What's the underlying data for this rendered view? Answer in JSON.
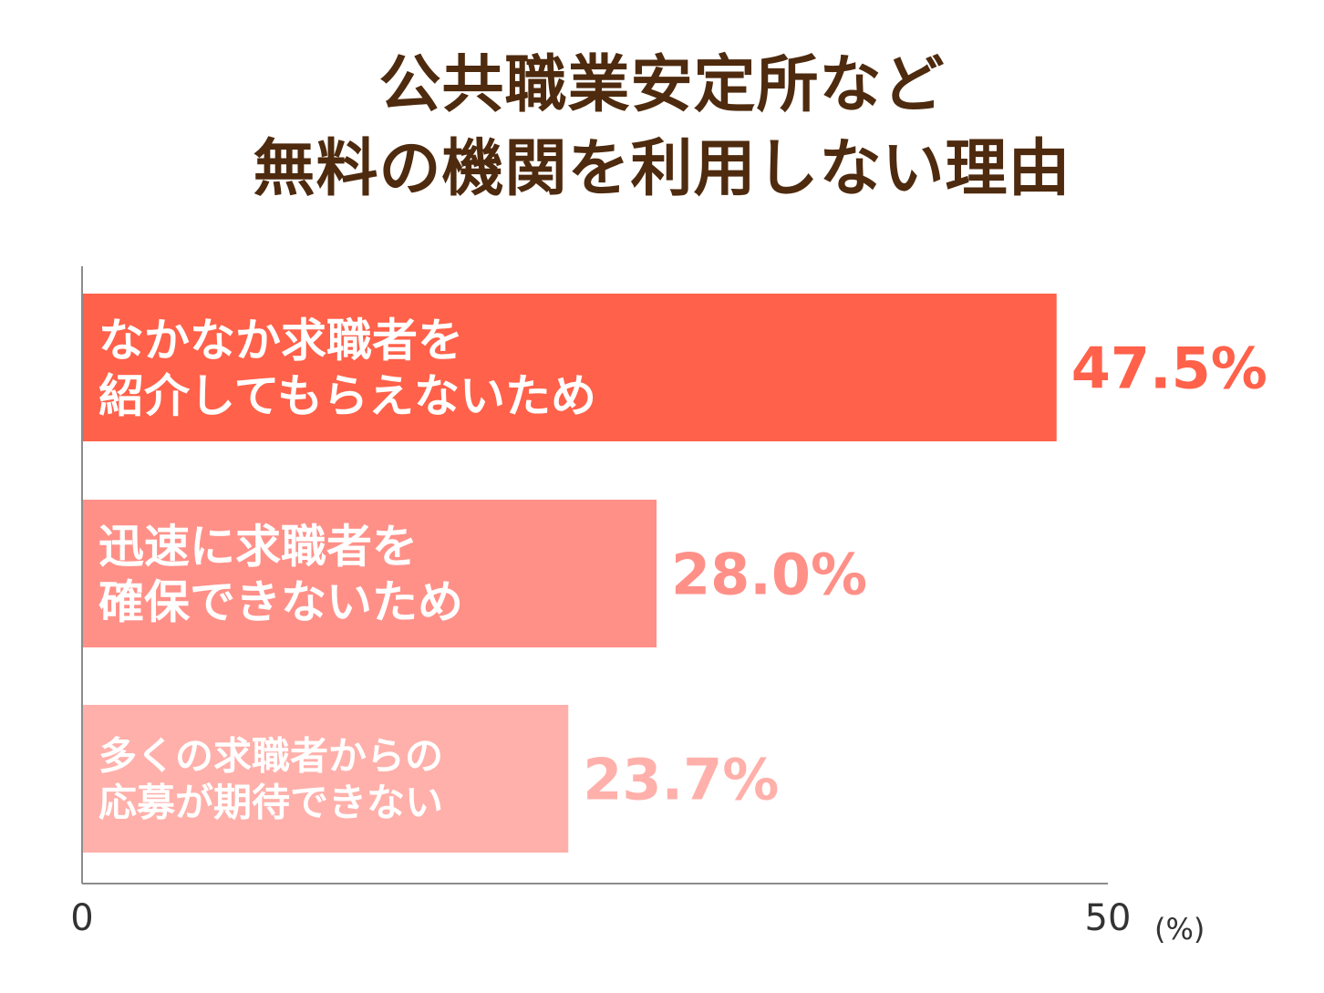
{
  "chart_data": {
    "type": "bar",
    "orientation": "horizontal",
    "title": [
      "公共職業安定所など",
      "無料の機関を利用しない理由"
    ],
    "categories": [
      [
        "なかなか求職者を",
        "紹介してもらえないため"
      ],
      [
        "迅速に求職者を",
        "確保できないため"
      ],
      [
        "多くの求職者からの",
        "応募が期待できない"
      ]
    ],
    "values": [
      47.5,
      28.0,
      23.7
    ],
    "value_labels": [
      "47.5%",
      "28.0%",
      "23.7%"
    ],
    "colors": [
      "#ff614a",
      "#ff9088",
      "#ffb0aa"
    ],
    "xlim": [
      0,
      50
    ],
    "tick_labels": [
      "0",
      "50"
    ],
    "unit": "(%)",
    "grid": false,
    "legend": "none"
  }
}
